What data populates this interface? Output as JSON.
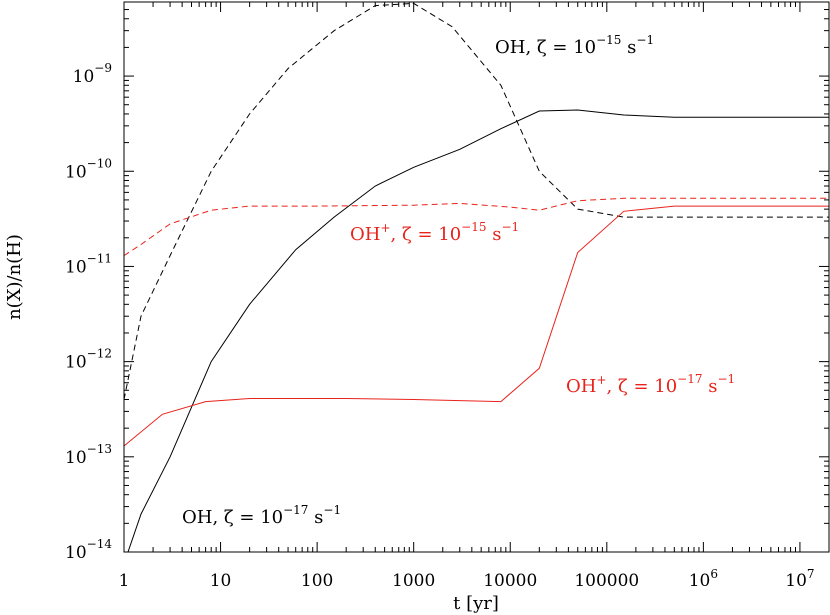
{
  "chart_data": {
    "type": "line",
    "title": "",
    "xlabel": "t [yr]",
    "ylabel": "n(X)/n(H)",
    "xscale": "log",
    "yscale": "log",
    "xlim": [
      1,
      20000000
    ],
    "ylim": [
      1e-14,
      6e-09
    ],
    "grid": false,
    "x_ticks": [
      {
        "value": 1,
        "base": "1",
        "exp": ""
      },
      {
        "value": 10,
        "base": "10",
        "exp": ""
      },
      {
        "value": 100,
        "base": "100",
        "exp": ""
      },
      {
        "value": 1000,
        "base": "1000",
        "exp": ""
      },
      {
        "value": 10000,
        "base": "10000",
        "exp": ""
      },
      {
        "value": 100000,
        "base": "100000",
        "exp": ""
      },
      {
        "value": 1000000,
        "base": "10",
        "exp": "6"
      },
      {
        "value": 10000000,
        "base": "10",
        "exp": "7"
      }
    ],
    "y_ticks": [
      {
        "value": 1e-14,
        "base": "10",
        "exp": "−14"
      },
      {
        "value": 1e-13,
        "base": "10",
        "exp": "−13"
      },
      {
        "value": 1e-12,
        "base": "10",
        "exp": "−12"
      },
      {
        "value": 1e-11,
        "base": "10",
        "exp": "−11"
      },
      {
        "value": 1e-10,
        "base": "10",
        "exp": "−10"
      },
      {
        "value": 1e-09,
        "base": "10",
        "exp": "−9"
      }
    ],
    "series": [
      {
        "color": "#000000",
        "dash": "dashed",
        "x": [
          1,
          1.5,
          3,
          8,
          20,
          50,
          150,
          400,
          1000,
          2500,
          8000,
          20000,
          50000,
          150000,
          500000,
          1500000,
          5000000,
          20000000
        ],
        "y": [
          4e-13,
          3e-12,
          1.3e-11,
          1e-10,
          4e-10,
          1.2e-09,
          3e-09,
          5.5e-09,
          5.8e-09,
          3.3e-09,
          8e-10,
          1e-10,
          4e-11,
          3.3e-11,
          3.3e-11,
          3.3e-11,
          3.3e-11,
          3.3e-11
        ]
      },
      {
        "color": "#000000",
        "dash": "solid",
        "x": [
          1.1,
          1.5,
          3,
          8,
          20,
          60,
          150,
          400,
          1000,
          3000,
          8000,
          20000,
          50000,
          150000,
          500000,
          1500000,
          5000000,
          20000000
        ],
        "y": [
          1e-14,
          2.5e-14,
          1e-13,
          1e-12,
          4e-12,
          1.5e-11,
          3.3e-11,
          7e-11,
          1.1e-10,
          1.7e-10,
          2.8e-10,
          4.3e-10,
          4.4e-10,
          3.9e-10,
          3.7e-10,
          3.7e-10,
          3.7e-10,
          3.7e-10
        ]
      },
      {
        "color": "#e8231c",
        "dash": "dashed",
        "x": [
          1,
          1.5,
          3,
          8,
          20,
          100,
          1000,
          3000,
          10000,
          20000,
          50000,
          150000,
          500000,
          1500000,
          5000000,
          20000000
        ],
        "y": [
          1.3e-11,
          1.7e-11,
          2.8e-11,
          3.9e-11,
          4.3e-11,
          4.3e-11,
          4.4e-11,
          4.6e-11,
          4.2e-11,
          3.9e-11,
          4.9e-11,
          5.2e-11,
          5.2e-11,
          5.2e-11,
          5.2e-11,
          5.2e-11
        ]
      },
      {
        "color": "#e8231c",
        "dash": "solid",
        "x": [
          1,
          2.5,
          7,
          20,
          60,
          200,
          1000,
          3000,
          8000,
          20000,
          50000,
          150000,
          500000,
          1500000,
          5000000,
          20000000
        ],
        "y": [
          1.3e-13,
          2.8e-13,
          3.8e-13,
          4.1e-13,
          4.1e-13,
          4.1e-13,
          4e-13,
          3.9e-13,
          3.8e-13,
          8.5e-13,
          1.4e-11,
          3.8e-11,
          4.3e-11,
          4.3e-11,
          4.3e-11,
          4.3e-11
        ]
      }
    ],
    "annotations": [
      {
        "species": "OH",
        "species_sup": "",
        "mid": ", ζ = 10",
        "zeta_exp": "−15",
        "unit": " s",
        "unit_exp": "−1",
        "color": "#000000"
      },
      {
        "species": "OH",
        "species_sup": "+",
        "mid": ", ζ = 10",
        "zeta_exp": "−15",
        "unit": " s",
        "unit_exp": "−1",
        "color": "#e8231c"
      },
      {
        "species": "OH",
        "species_sup": "+",
        "mid": ", ζ = 10",
        "zeta_exp": "−17",
        "unit": " s",
        "unit_exp": "−1",
        "color": "#e8231c"
      },
      {
        "species": "OH",
        "species_sup": "",
        "mid": ", ζ = 10",
        "zeta_exp": "−17",
        "unit": " s",
        "unit_exp": "−1",
        "color": "#000000"
      }
    ]
  }
}
